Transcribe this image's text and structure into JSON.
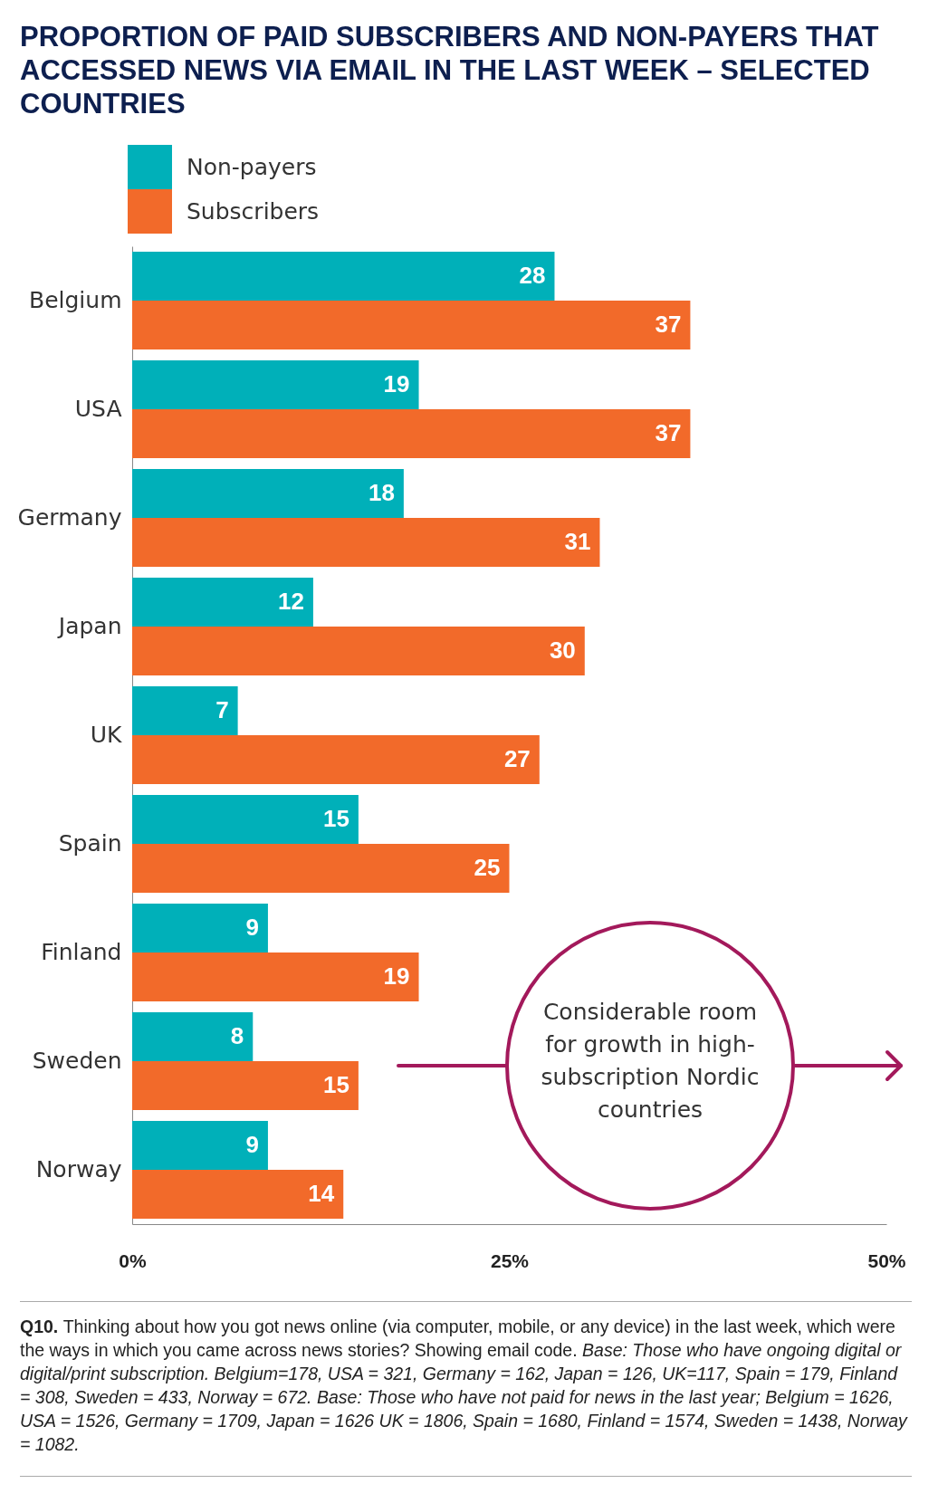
{
  "chart_data": {
    "type": "bar",
    "orientation": "horizontal",
    "title": "PROPORTION OF PAID SUBSCRIBERS AND NON-PAYERS THAT ACCESSED NEWS VIA EMAIL IN THE LAST WEEK – SELECTED COUNTRIES",
    "categories": [
      "Belgium",
      "USA",
      "Germany",
      "Japan",
      "UK",
      "Spain",
      "Finland",
      "Sweden",
      "Norway"
    ],
    "series": [
      {
        "name": "Non-payers",
        "color": "#00b0b9",
        "values": [
          28,
          19,
          18,
          12,
          7,
          15,
          9,
          8,
          9
        ]
      },
      {
        "name": "Subscribers",
        "color": "#f26a2a",
        "values": [
          37,
          37,
          31,
          30,
          27,
          25,
          19,
          15,
          14
        ]
      }
    ],
    "xlim": [
      0,
      50
    ],
    "xticks": [
      {
        "value": 0,
        "label": "0%"
      },
      {
        "value": 25,
        "label": "25%"
      },
      {
        "value": 50,
        "label": "50%"
      }
    ],
    "data_labels": true,
    "grid": false,
    "legend": "top left",
    "annotations": [
      "Considerable room for growth in high-subscription Nordic countries",
      "Q10.",
      "Thinking about how you got news online (via computer, mobile, or any device) in the last week, which were the ways in which you came across news stories? Showing email code.",
      "Base: Those who have ongoing digital or digital/print subscription. Belgium=178, USA = 321, Germany = 162, Japan = 126, UK=117, Spain = 179, Finland = 308, Sweden = 433, Norway = 672. Base: Those who have not paid for news in the last year; Belgium = 1626, USA = 1526, Germany = 1709, Japan = 1626 UK = 1806, Spain = 1680, Finland = 1574, Sweden = 1438, Norway = 1082."
    ]
  }
}
